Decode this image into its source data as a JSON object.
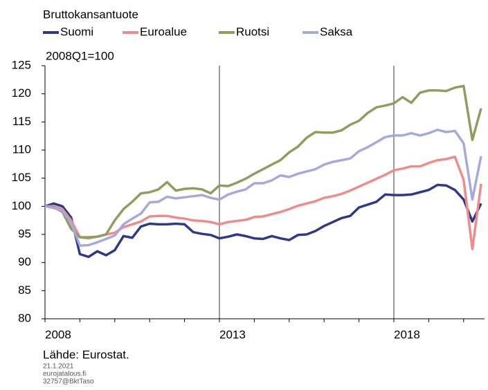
{
  "chart_data": {
    "type": "line",
    "title": "Bruttokansantuote",
    "y_label": "2008Q1=100",
    "source": "Lähde: Eurostat.",
    "footer": [
      "21.1.2021",
      "eurojatalous.fi",
      "32757@BktTaso"
    ],
    "categories": [
      "2008",
      null,
      null,
      null,
      null,
      null,
      null,
      null,
      null,
      null,
      null,
      null,
      null,
      null,
      null,
      null,
      null,
      null,
      null,
      null,
      "2013",
      null,
      null,
      null,
      null,
      null,
      null,
      null,
      null,
      null,
      null,
      null,
      null,
      null,
      null,
      null,
      null,
      null,
      null,
      null,
      "2018",
      null,
      null,
      null,
      null,
      null,
      null,
      null,
      null,
      null,
      null
    ],
    "ylim": [
      80,
      125
    ],
    "yticks": [
      80,
      85,
      90,
      95,
      100,
      105,
      110,
      115,
      120,
      125
    ],
    "series": [
      {
        "name": "Suomi",
        "color": "#2e3a87",
        "values": [
          100,
          100.5,
          100,
          98,
          91.5,
          91,
          92,
          91.3,
          92.2,
          94.7,
          94.4,
          96.4,
          96.9,
          96.8,
          96.8,
          96.9,
          96.8,
          95.4,
          95.1,
          94.9,
          94.3,
          94.6,
          95,
          94.7,
          94.3,
          94.2,
          94.7,
          94.3,
          94,
          94.9,
          95,
          95.6,
          96.5,
          97.2,
          97.9,
          98.3,
          99.8,
          100.3,
          100.8,
          102.1,
          102,
          102,
          102.1,
          102.5,
          102.9,
          103.8,
          103.7,
          102.9,
          101.2,
          97.3,
          100.5
        ]
      },
      {
        "name": "Euroalue",
        "color": "#f08b8b",
        "values": [
          100,
          100,
          99.5,
          97.5,
          94.5,
          94.3,
          94.6,
          95,
          95.3,
          96.3,
          96.8,
          97.3,
          98.2,
          98.3,
          98.3,
          98,
          97.8,
          97.5,
          97.4,
          97.2,
          96.8,
          97.2,
          97.4,
          97.6,
          98.1,
          98.2,
          98.6,
          99,
          99.5,
          100.1,
          100.5,
          100.9,
          101.5,
          101.8,
          102.2,
          102.8,
          103.5,
          104.2,
          104.9,
          105.6,
          106.4,
          106.7,
          107.1,
          107.1,
          107.7,
          108.2,
          108.4,
          108.8,
          104.7,
          92.4,
          104
        ]
      },
      {
        "name": "Ruotsi",
        "color": "#8d9e5e",
        "values": [
          100,
          99.8,
          99,
          96,
          94.5,
          94.5,
          94.6,
          95,
          97.5,
          99.5,
          100.8,
          102.3,
          102.5,
          103,
          104.3,
          102.8,
          103.1,
          103.2,
          103,
          102.3,
          103.7,
          103.6,
          104.2,
          104.9,
          105.8,
          106.6,
          107.4,
          108.2,
          109.6,
          110.6,
          112.2,
          113.2,
          113.1,
          113.1,
          113.5,
          114.5,
          115.2,
          116.6,
          117.6,
          117.9,
          118.3,
          119.4,
          118.4,
          120.2,
          120.6,
          120.6,
          120.5,
          121.1,
          121.4,
          111.8,
          117.4
        ]
      },
      {
        "name": "Saksa",
        "color": "#a5a9dc",
        "values": [
          100,
          99.7,
          99.2,
          97,
          93,
          93.1,
          93.6,
          94.2,
          94.8,
          96.8,
          97.8,
          98.7,
          100.7,
          100.8,
          101.7,
          101.4,
          101.6,
          101.8,
          102,
          101.5,
          101.2,
          102.1,
          102.6,
          103,
          104.1,
          104.1,
          104.6,
          105.5,
          105.2,
          105.8,
          106.2,
          106.6,
          107.4,
          107.9,
          108.2,
          108.5,
          109.8,
          110.5,
          111.4,
          112.3,
          112.6,
          112.6,
          113,
          112.6,
          113,
          113.6,
          113.2,
          113.4,
          111.2,
          101.2,
          108.9
        ]
      }
    ]
  }
}
